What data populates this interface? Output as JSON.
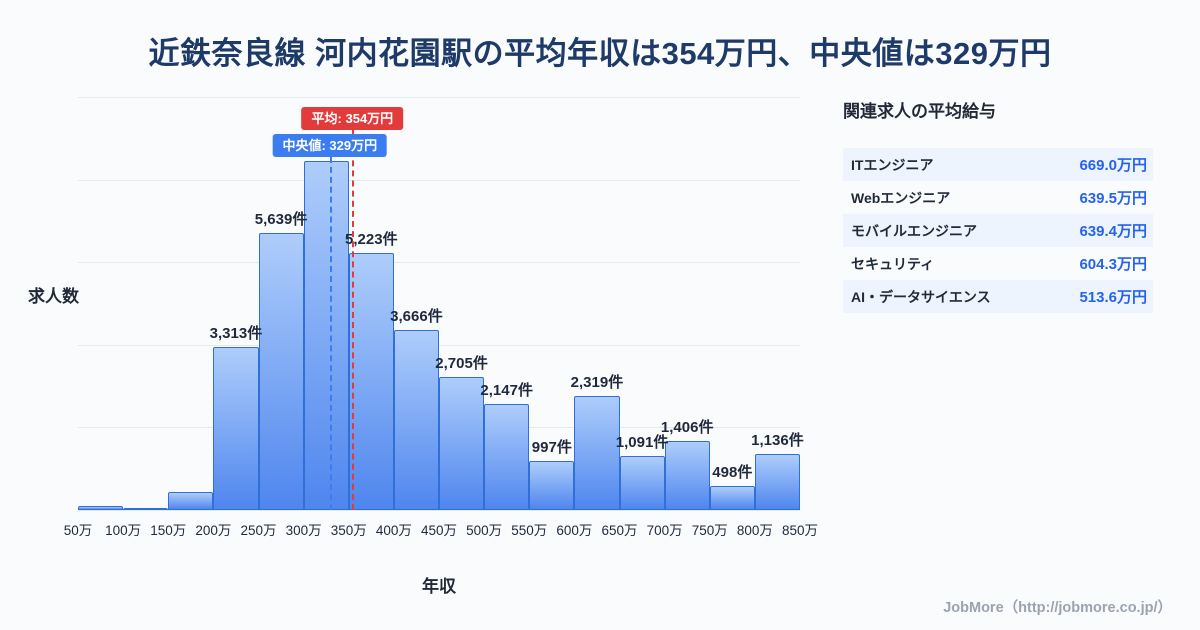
{
  "page": {
    "title": "近鉄奈良線 河内花園駅の平均年収は354万円、中央値は329万円",
    "footer": "JobMore（http://jobmore.co.jp/）"
  },
  "chart_data": {
    "type": "bar",
    "xlabel": "年収",
    "ylabel": "求人数",
    "unit": "件",
    "x_range": [
      50,
      850
    ],
    "x_ticks": [
      "50万",
      "100万",
      "150万",
      "200万",
      "250万",
      "300万",
      "350万",
      "400万",
      "450万",
      "500万",
      "550万",
      "600万",
      "650万",
      "700万",
      "750万",
      "800万",
      "850万"
    ],
    "bins": [
      {
        "range": "50万-100万",
        "value": 90,
        "label": ""
      },
      {
        "range": "100万-150万",
        "value": 50,
        "label": ""
      },
      {
        "range": "150万-200万",
        "value": 370,
        "label": ""
      },
      {
        "range": "200万-250万",
        "value": 3313,
        "label": "3,313件"
      },
      {
        "range": "250万-300万",
        "value": 5639,
        "label": "5,639件"
      },
      {
        "range": "300万-350万",
        "value": 7100,
        "label": ""
      },
      {
        "range": "350万-400万",
        "value": 5223,
        "label": "5,223件"
      },
      {
        "range": "400万-450万",
        "value": 3666,
        "label": "3,666件"
      },
      {
        "range": "450万-500万",
        "value": 2705,
        "label": "2,705件"
      },
      {
        "range": "500万-550万",
        "value": 2147,
        "label": "2,147件"
      },
      {
        "range": "550万-600万",
        "value": 997,
        "label": "997件"
      },
      {
        "range": "600万-650万",
        "value": 2319,
        "label": "2,319件"
      },
      {
        "range": "650万-700万",
        "value": 1091,
        "label": "1,091件"
      },
      {
        "range": "700万-750万",
        "value": 1406,
        "label": "1,406件"
      },
      {
        "range": "750万-800万",
        "value": 498,
        "label": "498件"
      },
      {
        "range": "800万-850万",
        "value": 1136,
        "label": "1,136件"
      }
    ],
    "ylim": [
      0,
      8400
    ],
    "grid": true,
    "mean": {
      "label": "平均: 354万円",
      "value": 354,
      "color": "#e23b3b"
    },
    "median": {
      "label": "中央値: 329万円",
      "value": 329,
      "color": "#3b7cf0"
    }
  },
  "related_jobs": {
    "heading": "関連求人の平均給与",
    "rows": [
      {
        "label": "ITエンジニア",
        "value": "669.0万円"
      },
      {
        "label": "Webエンジニア",
        "value": "639.5万円"
      },
      {
        "label": "モバイルエンジニア",
        "value": "639.4万円"
      },
      {
        "label": "セキュリティ",
        "value": "604.3万円"
      },
      {
        "label": "AI・データサイエンス",
        "value": "513.6万円"
      }
    ]
  },
  "colors": {
    "title": "#1d3a68",
    "bar_gradient_top": "#aecdfb",
    "bar_gradient_bottom": "#4f86ee",
    "bar_border": "#2e6fd8",
    "mean_line": "#e23b3b",
    "median_line": "#3b7cf0",
    "salary_value": "#2563eb",
    "row_alt_background": "#edf4fe"
  }
}
